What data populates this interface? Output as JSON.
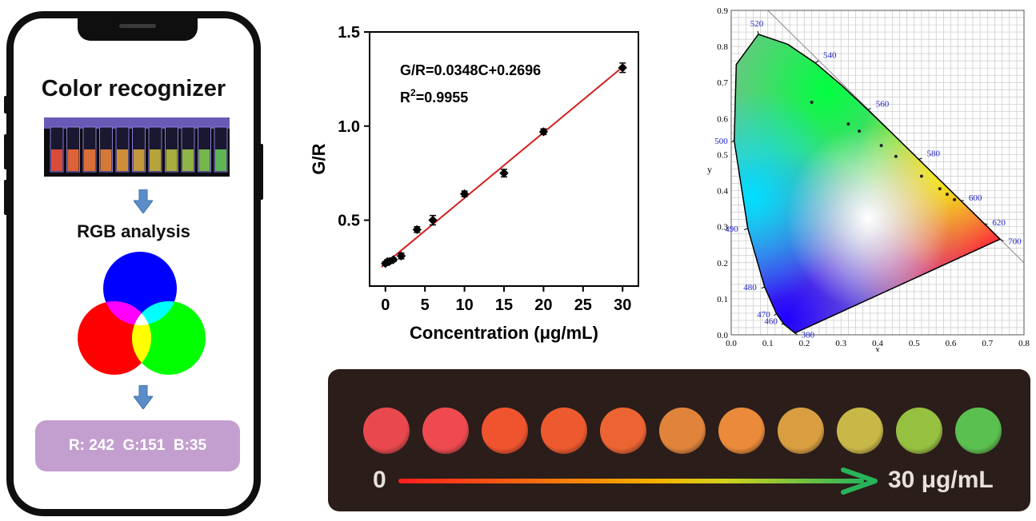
{
  "phone": {
    "title": "Color recognizer",
    "step2_title": "RGB analysis",
    "rgb_readout": "R: 242  G:151  B:35",
    "cuvette_colors": [
      "#f0503c",
      "#f46a3a",
      "#f0783a",
      "#e8843a",
      "#e49a3a",
      "#d6a63c",
      "#c8b23e",
      "#b8be42",
      "#9ec648",
      "#80c850",
      "#66c858"
    ],
    "venn_colors": {
      "top": "#0000ff",
      "left": "#ff0000",
      "right": "#00ff00",
      "red_blue": "#ff00ff",
      "green_blue": "#00ffff",
      "red_green": "#ffff00",
      "center": "#ffffff"
    }
  },
  "chart_data": [
    {
      "type": "scatter",
      "title": "",
      "xlabel": "Concentration (μg/mL)",
      "ylabel": "G/R",
      "xlim": [
        -2,
        32
      ],
      "ylim": [
        0.15,
        1.5
      ],
      "xticks": [
        "0",
        "5",
        "10",
        "15",
        "20",
        "25",
        "30"
      ],
      "yticks": [
        "0.5",
        "1.0",
        "1.5"
      ],
      "x": [
        0,
        0.25,
        0.5,
        1,
        2,
        4,
        6,
        10,
        15,
        20,
        30
      ],
      "y": [
        0.27,
        0.28,
        0.28,
        0.29,
        0.31,
        0.45,
        0.5,
        0.64,
        0.75,
        0.97,
        1.31
      ],
      "error": [
        0.01,
        0.01,
        0.01,
        0.01,
        0.015,
        0.015,
        0.025,
        0.015,
        0.02,
        0.015,
        0.025
      ],
      "fit": {
        "slope": 0.0348,
        "intercept": 0.2696,
        "x_range": [
          -0.5,
          30.3
        ],
        "color": "#d32020"
      },
      "annotation_equation": "G/R=0.0348C+0.2696",
      "annotation_r2_prefix": "R",
      "annotation_r2_sup": "2",
      "annotation_r2_value": "=0.9955",
      "grid": false
    },
    {
      "type": "scatter",
      "title": "",
      "xlabel": "x",
      "ylabel": "y",
      "xlim": [
        0,
        0.8
      ],
      "ylim": [
        0,
        0.9
      ],
      "xticks": [
        "0.0",
        "0.1",
        "0.2",
        "0.3",
        "0.4",
        "0.5",
        "0.6",
        "0.7",
        "0.8"
      ],
      "yticks": [
        "0.0",
        "0.1",
        "0.2",
        "0.3",
        "0.4",
        "0.5",
        "0.6",
        "0.7",
        "0.8",
        "0.9"
      ],
      "grid": true,
      "points_x": [
        0.22,
        0.32,
        0.35,
        0.41,
        0.45,
        0.52,
        0.57,
        0.59,
        0.61
      ],
      "points_y": [
        0.645,
        0.585,
        0.565,
        0.525,
        0.495,
        0.44,
        0.405,
        0.39,
        0.375
      ],
      "wavelengths": [
        {
          "label": "380",
          "x": 0.1741,
          "y": 0.005
        },
        {
          "label": "460",
          "x": 0.144,
          "y": 0.0297
        },
        {
          "label": "470",
          "x": 0.1241,
          "y": 0.0578
        },
        {
          "label": "480",
          "x": 0.0913,
          "y": 0.1327
        },
        {
          "label": "490",
          "x": 0.0454,
          "y": 0.295
        },
        {
          "label": "500",
          "x": 0.0082,
          "y": 0.5384
        },
        {
          "label": "520",
          "x": 0.0743,
          "y": 0.8338
        },
        {
          "label": "540",
          "x": 0.2296,
          "y": 0.7543
        },
        {
          "label": "560",
          "x": 0.3731,
          "y": 0.6245
        },
        {
          "label": "580",
          "x": 0.5125,
          "y": 0.4866
        },
        {
          "label": "600",
          "x": 0.627,
          "y": 0.3725
        },
        {
          "label": "620",
          "x": 0.6915,
          "y": 0.3083
        },
        {
          "label": "700",
          "x": 0.7347,
          "y": 0.2653
        }
      ]
    }
  ],
  "scale_bar": {
    "start_label": "0",
    "end_label": "30 μg/mL",
    "arrow_color": "#28b45a",
    "dot_colors": [
      "#e8484e",
      "#ee4a50",
      "#f0542e",
      "#ee5a30",
      "#ec6432",
      "#e0843c",
      "#ea8a3a",
      "#d89e40",
      "#c8b848",
      "#96c040",
      "#5ac050"
    ]
  }
}
